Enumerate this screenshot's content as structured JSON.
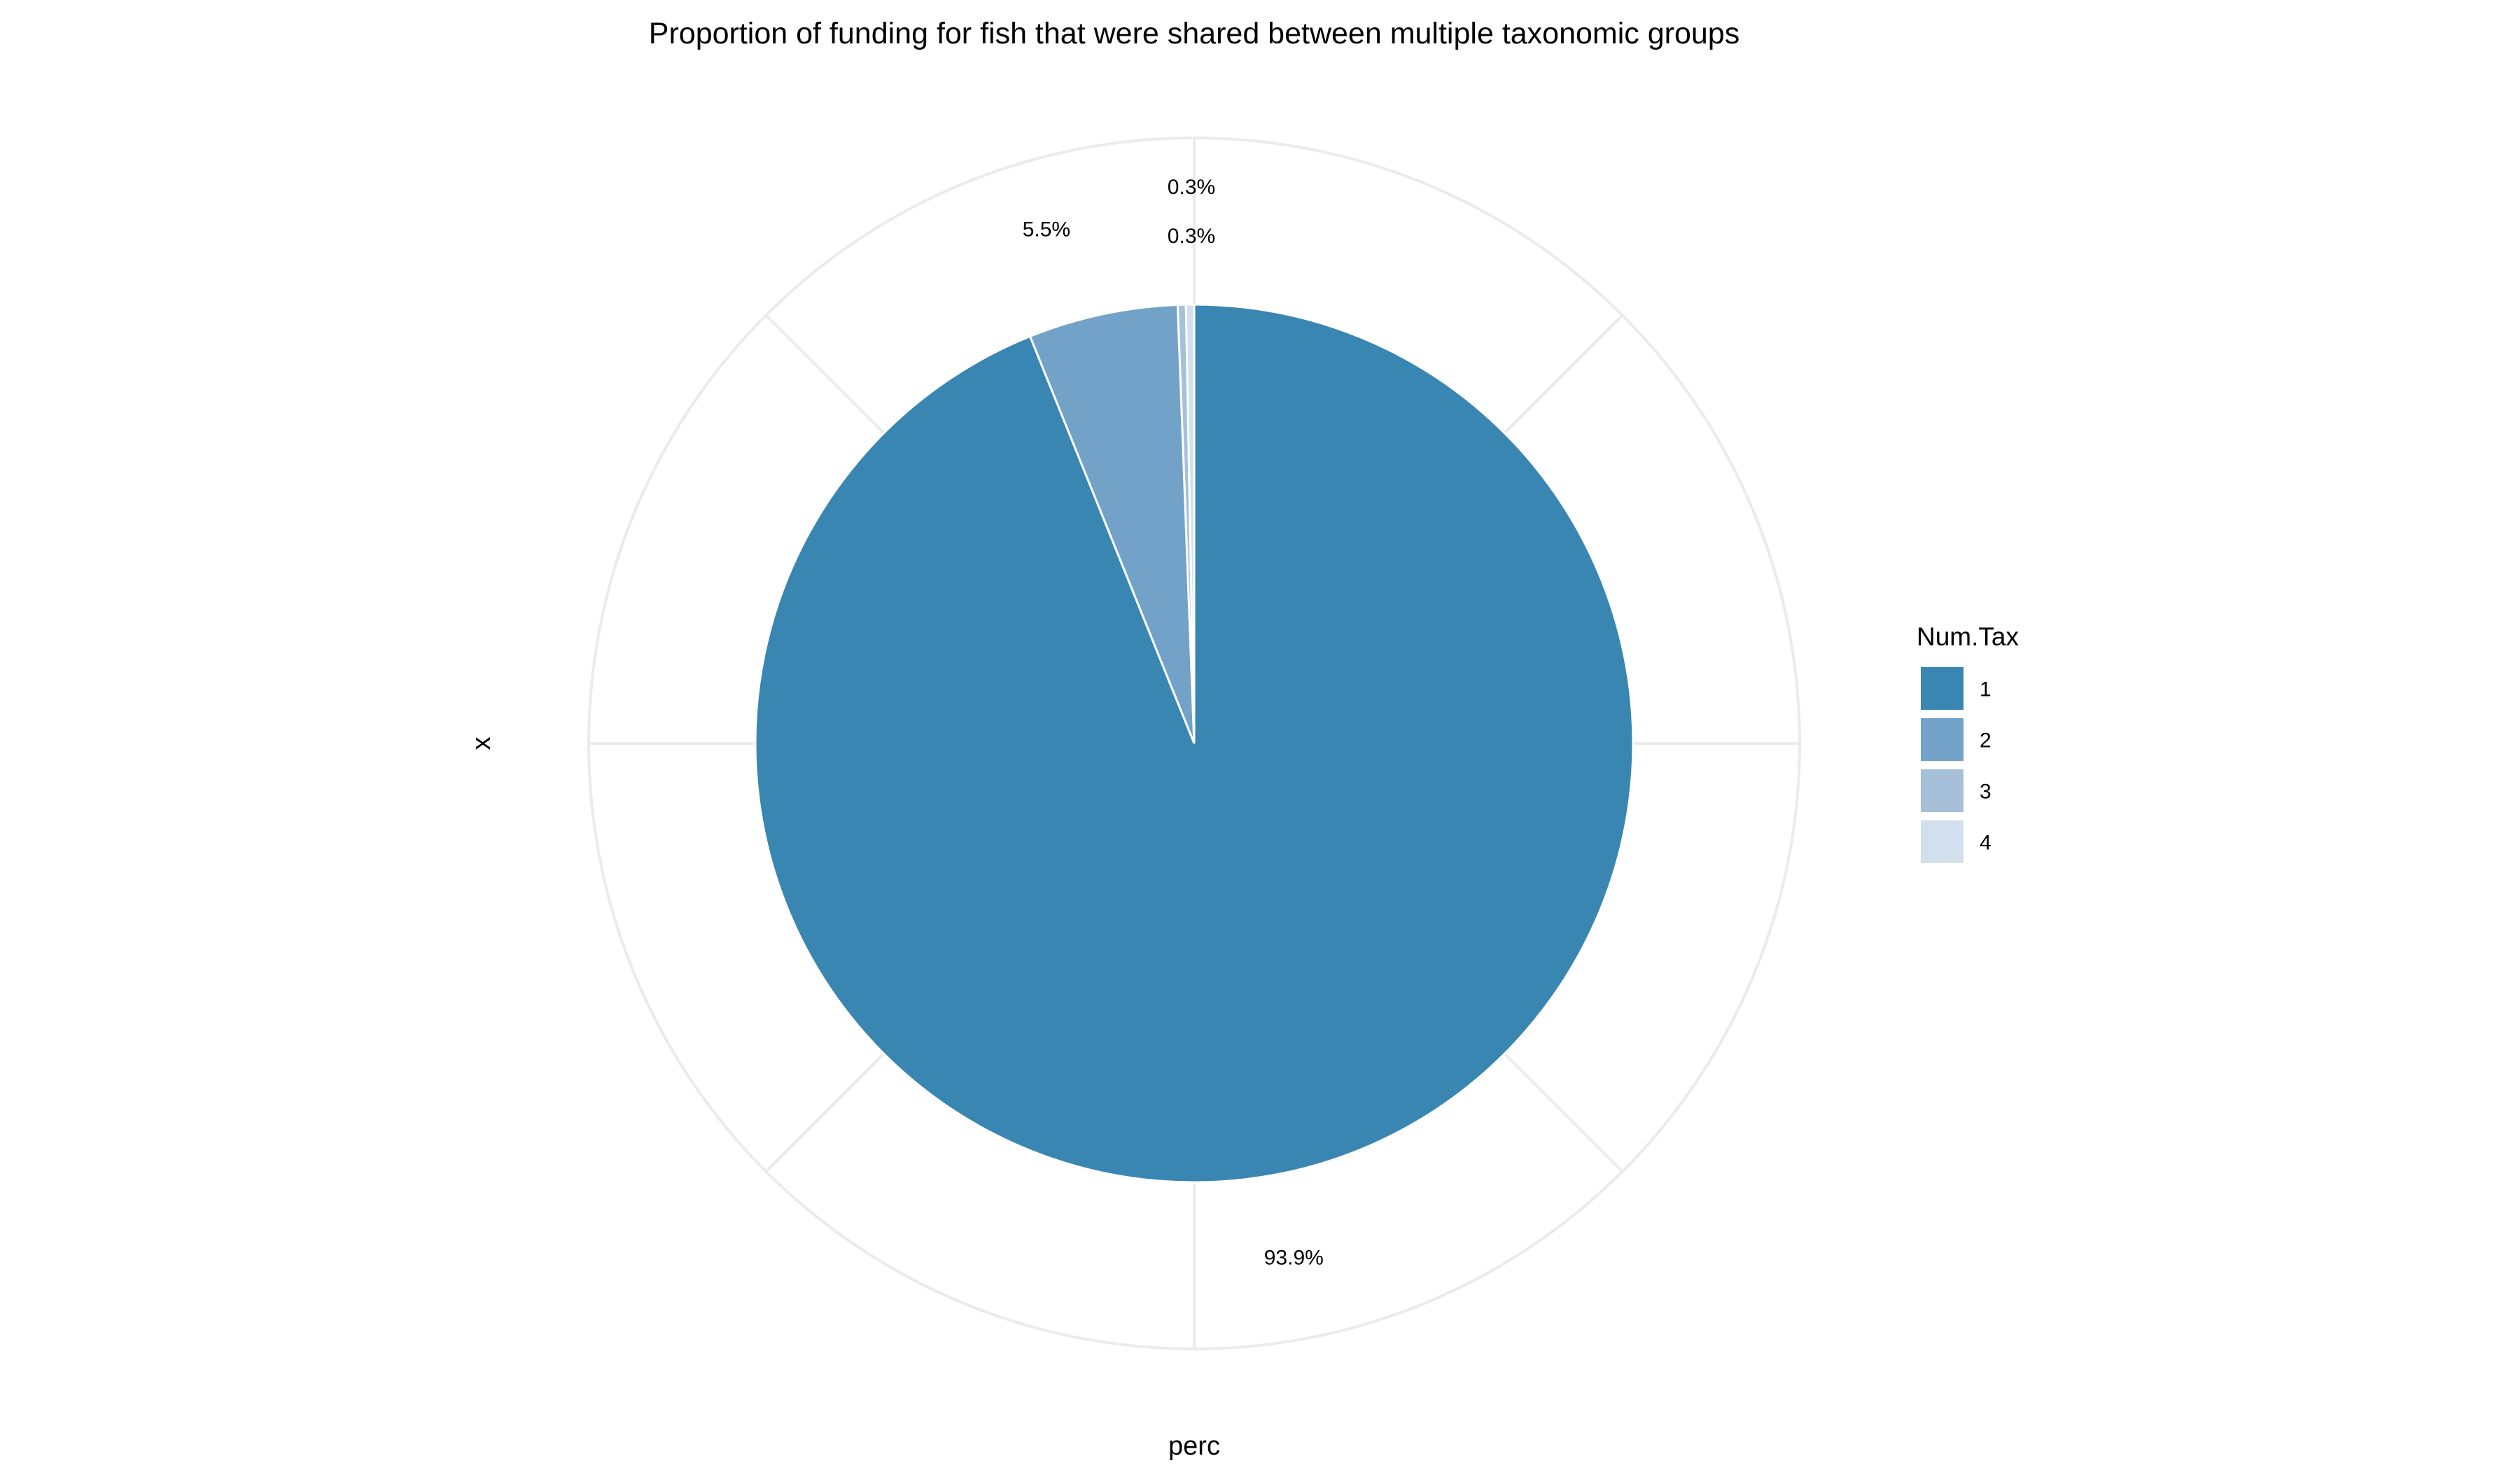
{
  "chart_data": {
    "type": "pie",
    "title": "Proportion of funding for fish that were shared between multiple taxonomic groups",
    "xlabel": "perc",
    "ylabel": "x",
    "legend": {
      "title": "Num.Tax",
      "placement": "right"
    },
    "categories": [
      "1",
      "2",
      "3",
      "4"
    ],
    "values": [
      93.9,
      5.5,
      0.3,
      0.3
    ],
    "labels": [
      "93.9%",
      "5.5%",
      "0.3%",
      "0.3%"
    ],
    "colors": [
      "#3a86b2",
      "#72a2c7",
      "#a6c0da",
      "#d2dfec"
    ],
    "grid": true
  }
}
